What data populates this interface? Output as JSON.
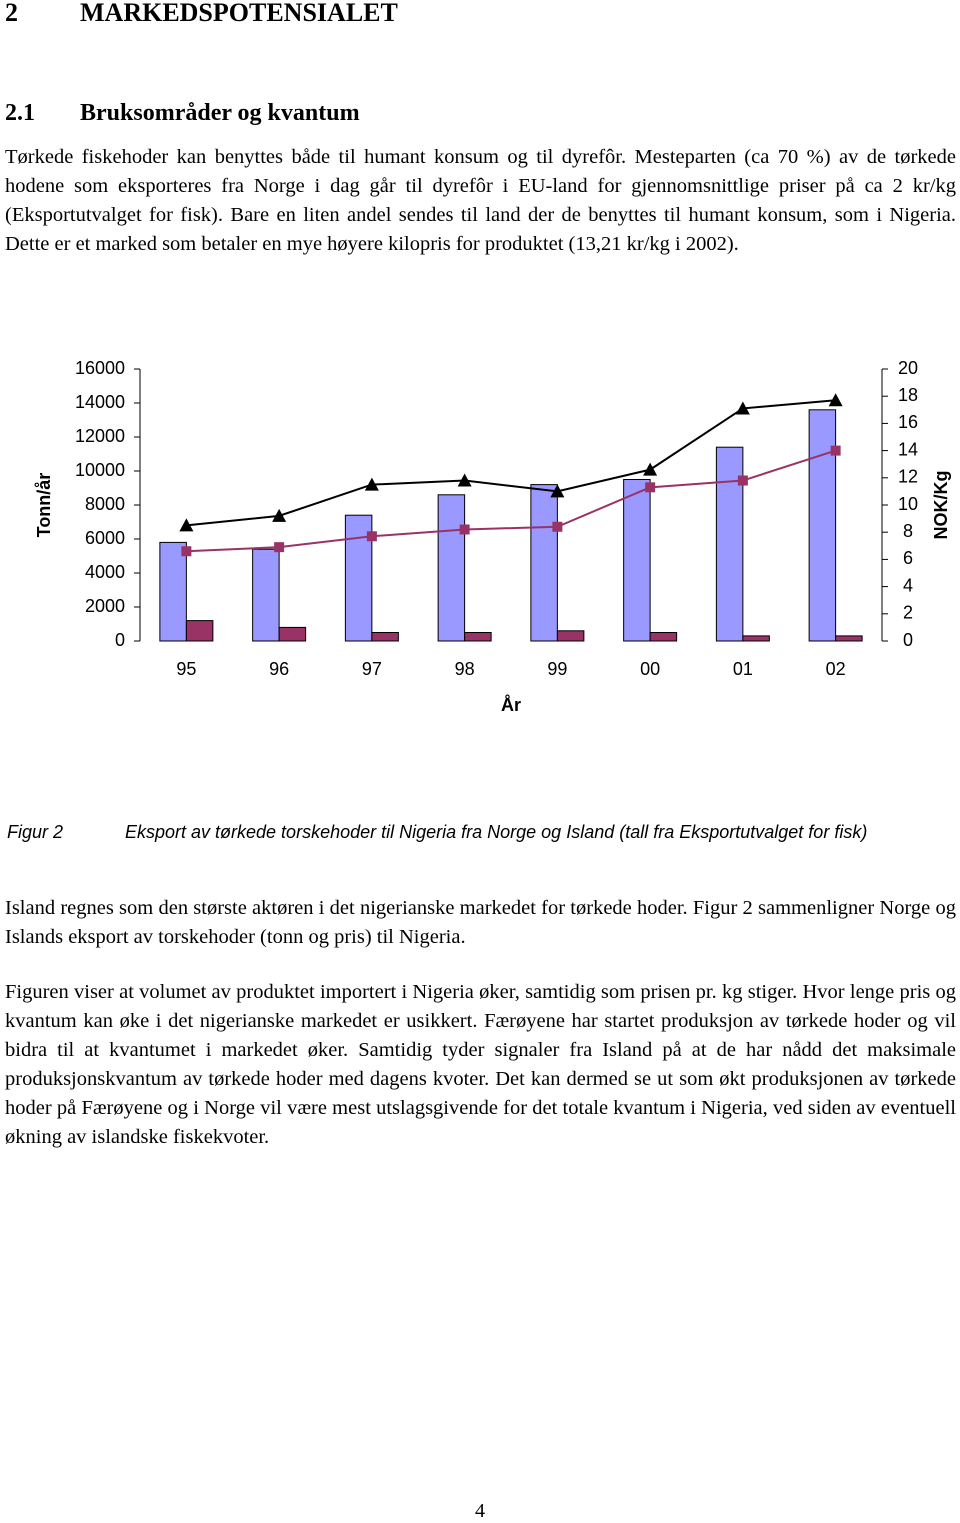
{
  "heading1": {
    "number": "2",
    "title": "MARKEDSPOTENSIALET"
  },
  "heading2": {
    "number": "2.1",
    "title": "Bruksområder og kvantum"
  },
  "paragraphs_top": [
    "Tørkede fiskehoder kan benyttes både til humant konsum og til dyrefôr. Mesteparten (ca 70 %) av de tørkede hodene som eksporteres fra Norge i dag går til dyrefôr i EU-land for gjennomsnittlige priser på ca 2 kr/kg (Eksportutvalget for fisk). Bare en liten andel sendes til land der de benyttes til humant konsum, som i Nigeria. Dette er et marked som betaler en mye høyere kilopris for produktet (13,21 kr/kg i 2002)."
  ],
  "chart_data": {
    "type": "bar-line",
    "x_label": "År",
    "y_label": "Tonn/år",
    "y2_label": "NOK/Kg",
    "categories": [
      "95",
      "96",
      "97",
      "98",
      "99",
      "00",
      "01",
      "02"
    ],
    "ylim": [
      0,
      16000
    ],
    "yticks": [
      0,
      2000,
      4000,
      6000,
      8000,
      10000,
      12000,
      14000,
      16000
    ],
    "y2lim": [
      0,
      20
    ],
    "y2ticks": [
      0,
      2,
      4,
      6,
      8,
      10,
      12,
      14,
      16,
      18,
      20
    ],
    "series": [
      {
        "type": "bar",
        "color": "#9999ff",
        "values": [
          5800,
          5400,
          7400,
          8600,
          9200,
          9500,
          11400,
          13600
        ]
      },
      {
        "type": "bar",
        "color": "#993366",
        "values": [
          1200,
          800,
          500,
          500,
          600,
          500,
          300,
          300
        ]
      },
      {
        "type": "line",
        "axis": "y2",
        "marker": "triangle",
        "color": "#000000",
        "values": [
          8.5,
          9.2,
          11.5,
          11.8,
          11.0,
          12.6,
          17.1,
          17.7
        ]
      },
      {
        "type": "line",
        "axis": "y2",
        "marker": "square",
        "color": "#993366",
        "values": [
          6.6,
          6.9,
          7.7,
          8.2,
          8.4,
          11.3,
          11.8,
          14.0
        ]
      }
    ]
  },
  "caption": {
    "label": "Figur 2",
    "text": "Eksport av tørkede torskehoder til Nigeria fra Norge og Island (tall fra Eksportutvalget for fisk)"
  },
  "paragraphs_bottom": [
    "Island regnes som den største aktøren i det nigerianske markedet for tørkede hoder. Figur 2 sammenligner Norge og Islands eksport av torskehoder (tonn og pris) til Nigeria.",
    "Figuren viser at volumet av produktet importert i Nigeria øker, samtidig som prisen pr. kg stiger. Hvor lenge pris og kvantum kan øke i det nigerianske markedet er usikkert. Færøyene har startet produksjon av tørkede hoder og vil bidra til at kvantumet i markedet øker. Samtidig tyder signaler fra Island på at de har nådd det maksimale produksjonskvantum av tørkede hoder med dagens kvoter. Det kan dermed se ut som økt produksjonen av tørkede hoder på Færøyene og i Norge vil være mest utslagsgivende for det totale kvantum i Nigeria, ved siden av eventuell økning av islandske fiskekvoter."
  ],
  "page_number": "4"
}
